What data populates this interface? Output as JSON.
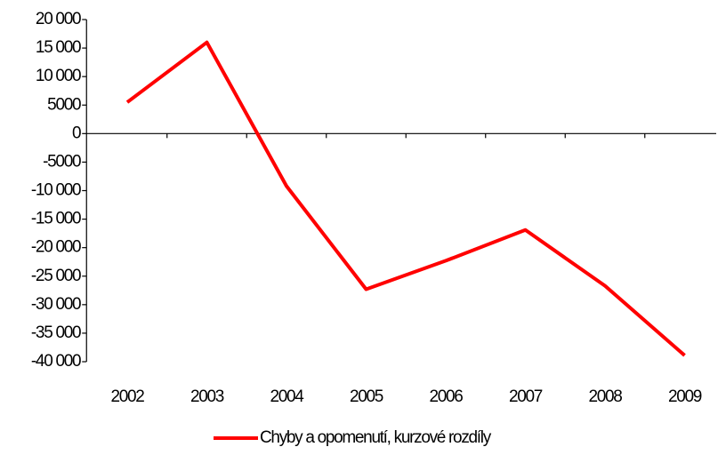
{
  "chart_data": {
    "type": "line",
    "categories": [
      "2002",
      "2003",
      "2004",
      "2005",
      "2006",
      "2007",
      "2008",
      "2009"
    ],
    "series": [
      {
        "name": "Chyby a opomenutí, kurzové rozdíly",
        "color": "#ff0000",
        "values": [
          5500,
          16000,
          -9200,
          -27300,
          -22300,
          -16900,
          -26700,
          -38900
        ]
      }
    ],
    "ylim": [
      -40000,
      20000
    ],
    "yticks": [
      {
        "value": 20000,
        "label": "20 000"
      },
      {
        "value": 15000,
        "label": "15 000"
      },
      {
        "value": 10000,
        "label": "10 000"
      },
      5000,
      0,
      -5000,
      {
        "value": -10000,
        "label": "-10 000"
      },
      {
        "value": -15000,
        "label": "-15 000"
      },
      {
        "value": -20000,
        "label": "-20 000"
      },
      {
        "value": -25000,
        "label": "-25 000"
      },
      {
        "value": -30000,
        "label": "-30 000"
      },
      {
        "value": -35000,
        "label": "-35 000"
      },
      {
        "value": -40000,
        "label": "-40 000"
      }
    ],
    "legend": "bottom"
  }
}
